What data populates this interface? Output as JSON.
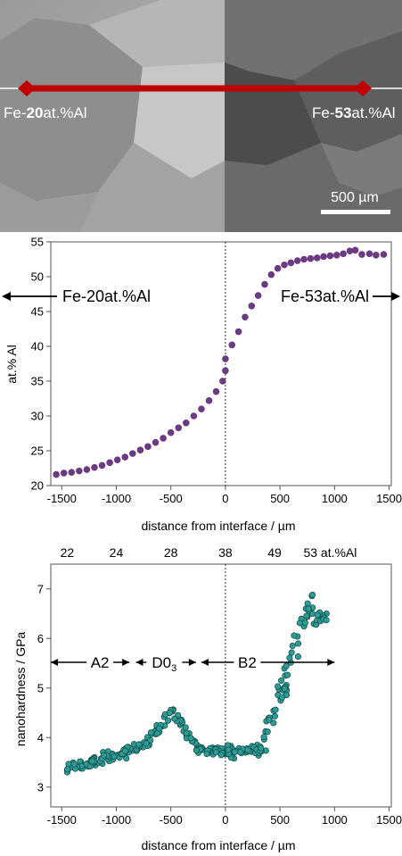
{
  "micrograph": {
    "left_label_prefix": "Fe-",
    "left_label_bold": "20",
    "left_label_suffix": "at.%Al",
    "right_label_prefix": "Fe-",
    "right_label_bold": "53",
    "right_label_suffix": "at.%Al",
    "scale_bar_label": "500 µm",
    "colors": {
      "profile_line": "#c00000",
      "bg_left": "#a8a8a8",
      "bg_right": "#5a5a5a"
    }
  },
  "chart_data": [
    {
      "type": "scatter",
      "ylabel": "at.% Al",
      "xlabel": "distance from interface / µm",
      "xlim": [
        -1600,
        1520
      ],
      "ylim": [
        20,
        55
      ],
      "xticks": [
        -1500,
        -1000,
        -500,
        0,
        500,
        1000,
        1500
      ],
      "yticks": [
        20,
        25,
        30,
        35,
        40,
        45,
        50,
        55
      ],
      "annotations": {
        "left": "Fe-20at.%Al",
        "right": "Fe-53at.%Al"
      },
      "marker_color": "#6b3a83",
      "interface_line": 0,
      "points": [
        [
          -1550,
          21.6
        ],
        [
          -1480,
          21.8
        ],
        [
          -1410,
          21.9
        ],
        [
          -1340,
          22.1
        ],
        [
          -1270,
          22.3
        ],
        [
          -1200,
          22.6
        ],
        [
          -1130,
          22.9
        ],
        [
          -1060,
          23.3
        ],
        [
          -990,
          23.7
        ],
        [
          -920,
          24.1
        ],
        [
          -850,
          24.6
        ],
        [
          -780,
          25.1
        ],
        [
          -710,
          25.6
        ],
        [
          -640,
          26.2
        ],
        [
          -570,
          26.8
        ],
        [
          -500,
          27.6
        ],
        [
          -430,
          28.3
        ],
        [
          -360,
          29.0
        ],
        [
          -290,
          30.0
        ],
        [
          -220,
          31.0
        ],
        [
          -150,
          32.2
        ],
        [
          -85,
          33.5
        ],
        [
          -25,
          35.0
        ],
        [
          0,
          36.5
        ],
        [
          0,
          38.2
        ],
        [
          60,
          40.2
        ],
        [
          120,
          42.1
        ],
        [
          180,
          44.2
        ],
        [
          240,
          45.8
        ],
        [
          300,
          47.3
        ],
        [
          360,
          48.9
        ],
        [
          420,
          50.3
        ],
        [
          480,
          51.2
        ],
        [
          540,
          51.7
        ],
        [
          600,
          52.0
        ],
        [
          660,
          52.3
        ],
        [
          720,
          52.5
        ],
        [
          780,
          52.6
        ],
        [
          840,
          52.7
        ],
        [
          900,
          52.9
        ],
        [
          960,
          53.0
        ],
        [
          1020,
          53.1
        ],
        [
          1080,
          53.3
        ],
        [
          1140,
          53.7
        ],
        [
          1190,
          53.8
        ],
        [
          1250,
          53.2
        ],
        [
          1320,
          53.3
        ],
        [
          1380,
          53.1
        ],
        [
          1450,
          53.2
        ]
      ]
    },
    {
      "type": "scatter",
      "ylabel": "nanohardness / GPa",
      "xlabel": "distance from interface / µm",
      "xlim": [
        -1600,
        1520
      ],
      "ylim": [
        2.6,
        7.5
      ],
      "xticks": [
        -1500,
        -1000,
        -500,
        0,
        500,
        1000,
        1500
      ],
      "yticks": [
        3,
        4,
        5,
        6,
        7
      ],
      "top_axis": {
        "labels": [
          "22",
          "24",
          "28",
          "38",
          "49",
          "53 at.%Al"
        ],
        "positions": [
          -1450,
          -1000,
          -500,
          0,
          450,
          960
        ]
      },
      "phase_labels": [
        {
          "label": "A2",
          "range": [
            -1600,
            -880
          ],
          "text_at": -1150
        },
        {
          "label": "D0",
          "sub": "3",
          "range": [
            -820,
            -270
          ],
          "text_at": -560
        },
        {
          "label": "B2",
          "range": [
            -220,
            1000
          ],
          "text_at": 200
        }
      ],
      "marker_color": "#2e9b95",
      "interface_line": 0
    }
  ],
  "text": {
    "ax1_xlabel": "distance from interface / µm",
    "ax1_ylabel": "at.% Al",
    "ax1_left_note": "Fe-20at.%Al",
    "ax1_right_note": "Fe-53at.%Al",
    "ax2_xlabel": "distance from interface / µm",
    "ax2_ylabel": "nanohardness / GPa",
    "ax2_phase_a2": "A2",
    "ax2_phase_d0": "D0",
    "ax2_phase_d0_sub": "3",
    "ax2_phase_b2": "B2"
  }
}
